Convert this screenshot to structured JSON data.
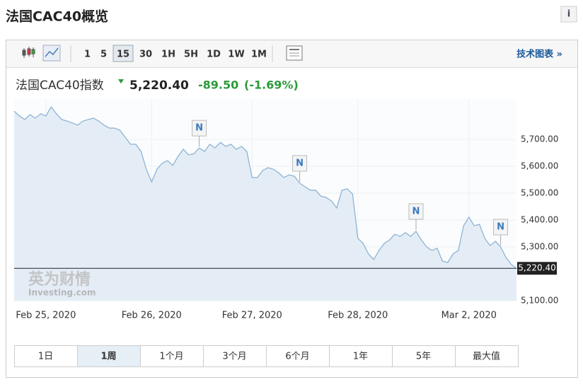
{
  "page": {
    "title": "法国CAC40概览",
    "info": "i",
    "toolbar": {
      "intervals": [
        "1",
        "5",
        "15",
        "30",
        "1H",
        "5H",
        "1D",
        "1W",
        "1M"
      ],
      "selected": "15",
      "link": "技术图表 »"
    },
    "quote": {
      "name": "法国CAC40指数",
      "change": "-89.50",
      "change_pct": "(-1.69%)"
    },
    "ranges": [
      "1日",
      "1周",
      "1个月",
      "3个月",
      "6个月",
      "1年",
      "5年",
      "最大值"
    ],
    "selected_range": "1周",
    "watermark": [
      "英为财情",
      "Investing.com"
    ],
    "news_marker": "N"
  },
  "chart_data": {
    "type": "area",
    "color": "#8fb3d6",
    "fill": "#e4edf5",
    "values": [
      5805,
      5787,
      5774,
      5792,
      5779,
      5795,
      5787,
      5821,
      5795,
      5774,
      5768,
      5761,
      5753,
      5768,
      5774,
      5779,
      5768,
      5753,
      5742,
      5742,
      5734,
      5708,
      5682,
      5682,
      5655,
      5589,
      5542,
      5589,
      5611,
      5621,
      5603,
      5637,
      5663,
      5642,
      5647,
      5668,
      5655,
      5682,
      5668,
      5689,
      5674,
      5682,
      5663,
      5674,
      5655,
      5558,
      5558,
      5584,
      5595,
      5589,
      5576,
      5558,
      5568,
      5563,
      5537,
      5524,
      5511,
      5511,
      5489,
      5484,
      5471,
      5445,
      5511,
      5516,
      5497,
      5332,
      5313,
      5274,
      5253,
      5287,
      5313,
      5326,
      5347,
      5339,
      5353,
      5339,
      5358,
      5326,
      5300,
      5287,
      5295,
      5247,
      5242,
      5274,
      5287,
      5379,
      5411,
      5379,
      5384,
      5332,
      5305,
      5321,
      5300,
      5261,
      5235,
      5220.4
    ],
    "xticks": [
      {
        "value": 6,
        "label": "Feb 25, 2020"
      },
      {
        "value": 26,
        "label": "Feb 26, 2020"
      },
      {
        "value": 45,
        "label": "Feb 27, 2020"
      },
      {
        "value": 65,
        "label": "Feb 28, 2020"
      },
      {
        "value": 86,
        "label": "Mar 2, 2020"
      }
    ],
    "ylim": [
      5100,
      5850
    ],
    "yticks": [
      {
        "value": 5100,
        "label": "5,100.00"
      },
      {
        "value": 5300,
        "label": "5,300.00"
      },
      {
        "value": 5400,
        "label": "5,400.00"
      },
      {
        "value": 5500,
        "label": "5,500.00"
      },
      {
        "value": 5600,
        "label": "5,600.00"
      },
      {
        "value": 5700,
        "label": "5,700.00"
      }
    ],
    "last_value": 5220.4,
    "last_label": "5,220.40"
  }
}
